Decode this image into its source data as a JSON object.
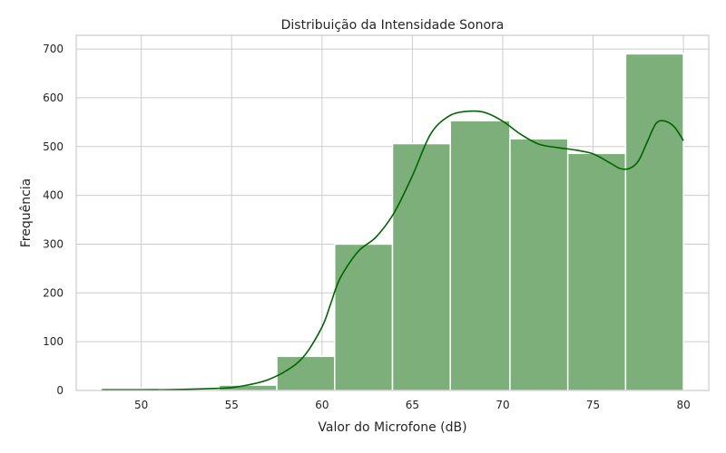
{
  "chart_data": {
    "type": "histogram",
    "title": "Distribuição da Intensidade Sonora",
    "xlabel": "Valor do Microfone (dB)",
    "ylabel": "Frequência",
    "xlim": [
      46.4,
      81.4
    ],
    "ylim": [
      0,
      728
    ],
    "xticks": [
      50,
      55,
      60,
      65,
      70,
      75,
      80
    ],
    "yticks": [
      0,
      100,
      200,
      300,
      400,
      500,
      600,
      700
    ],
    "grid": true,
    "bins": [
      {
        "x0": 47.8,
        "x1": 51.0,
        "count": 5
      },
      {
        "x0": 51.0,
        "x1": 54.3,
        "count": 2
      },
      {
        "x0": 54.3,
        "x1": 57.5,
        "count": 11
      },
      {
        "x0": 57.5,
        "x1": 60.7,
        "count": 70
      },
      {
        "x0": 60.7,
        "x1": 63.9,
        "count": 300
      },
      {
        "x0": 63.9,
        "x1": 67.1,
        "count": 506
      },
      {
        "x0": 67.1,
        "x1": 70.4,
        "count": 553
      },
      {
        "x0": 70.4,
        "x1": 73.6,
        "count": 516
      },
      {
        "x0": 73.6,
        "x1": 76.8,
        "count": 486
      },
      {
        "x0": 76.8,
        "x1": 80.0,
        "count": 690
      }
    ],
    "kde": {
      "x": [
        47.8,
        50,
        52,
        54,
        55,
        56,
        57,
        58,
        59,
        60,
        60.5,
        61,
        62,
        63,
        64,
        65,
        66,
        67,
        68,
        69,
        70,
        71,
        72,
        73,
        74,
        75,
        76,
        76.5,
        77,
        77.5,
        78,
        78.5,
        79,
        79.5,
        80
      ],
      "y": [
        1,
        1,
        2,
        4,
        6,
        12,
        22,
        40,
        70,
        130,
        180,
        230,
        285,
        315,
        365,
        440,
        525,
        562,
        572,
        570,
        552,
        525,
        505,
        498,
        493,
        485,
        465,
        455,
        455,
        470,
        510,
        548,
        552,
        540,
        512
      ]
    },
    "colors": {
      "bar_fill": "#7caf7a",
      "bar_edge": "#ffffff",
      "kde_line": "#006400",
      "grid": "#cccccc",
      "spine": "#cccccc"
    }
  }
}
